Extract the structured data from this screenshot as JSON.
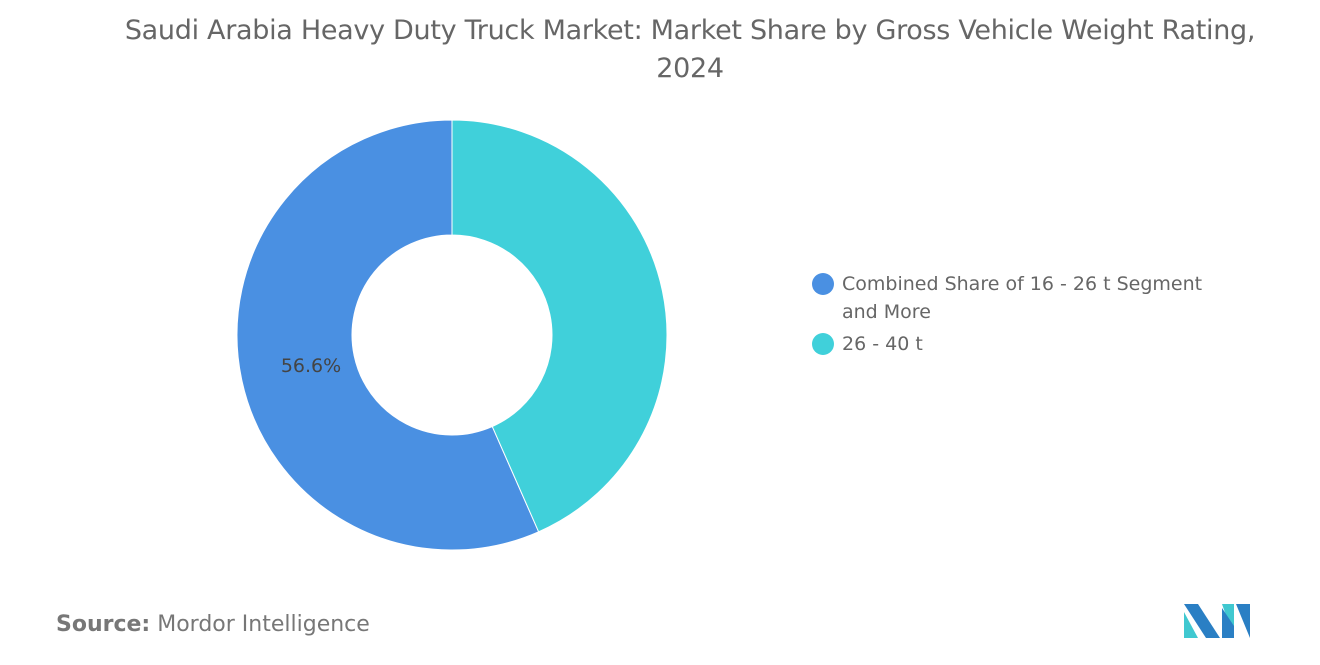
{
  "chart_data": {
    "type": "pie",
    "donut": true,
    "title": "Saudi Arabia Heavy Duty Truck Market: Market Share by Gross Vehicle Weight Rating, 2024",
    "categories": [
      "Combined Share of 16 - 26 t Segment and More",
      "26 - 40 t"
    ],
    "values": [
      56.6,
      43.4
    ],
    "data_labels": [
      "56.6%",
      ""
    ],
    "colors": [
      "#4a90e2",
      "#40d0da"
    ],
    "legend_position": "right"
  },
  "source": {
    "label": "Source:",
    "value": "Mordor Intelligence"
  },
  "logo": {
    "name": "mordor-intelligence-logo",
    "colors": [
      "#2a7fc4",
      "#40c8d0"
    ]
  }
}
